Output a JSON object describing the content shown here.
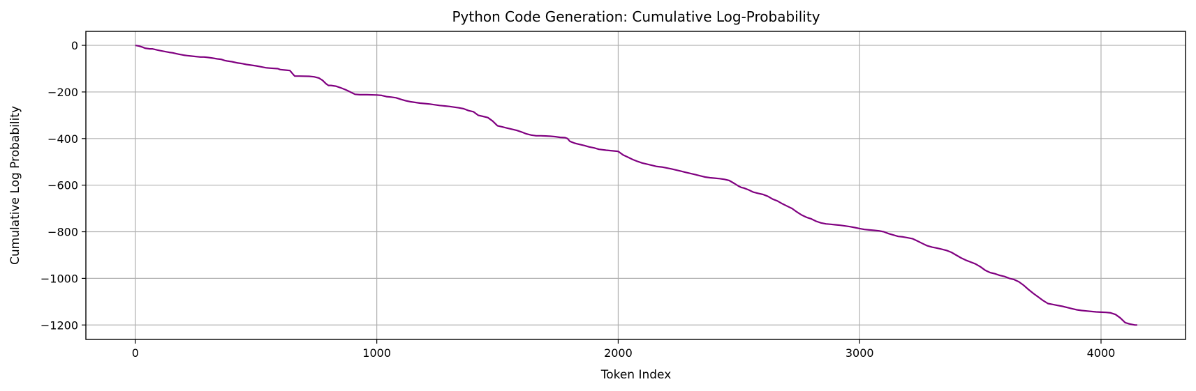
{
  "chart_data": {
    "type": "line",
    "title": "Python Code Generation: Cumulative Log-Probability",
    "xlabel": "Token Index",
    "ylabel": "Cumulative Log Probability",
    "xlim": [
      -205,
      4350
    ],
    "ylim": [
      -1262,
      60
    ],
    "grid": true,
    "xticks": [
      0,
      1000,
      2000,
      3000,
      4000
    ],
    "xtick_labels": [
      "0",
      "1000",
      "2000",
      "3000",
      "4000"
    ],
    "yticks": [
      0,
      -200,
      -400,
      -600,
      -800,
      -1000,
      -1200
    ],
    "ytick_labels": [
      "0",
      "−200",
      "−400",
      "−600",
      "−800",
      "−1000",
      "−1200"
    ],
    "series": [
      {
        "color": "#800080",
        "x": [
          0,
          15,
          30,
          40,
          60,
          70,
          90,
          100,
          115,
          130,
          140,
          155,
          170,
          190,
          200,
          215,
          230,
          250,
          270,
          285,
          300,
          320,
          340,
          355,
          370,
          380,
          400,
          420,
          440,
          460,
          480,
          500,
          520,
          540,
          560,
          590,
          600,
          620,
          640,
          650,
          660,
          680,
          720,
          740,
          760,
          775,
          790,
          800,
          810,
          830,
          850,
          870,
          880,
          900,
          910,
          930,
          960,
          1000,
          1020,
          1040,
          1060,
          1080,
          1100,
          1120,
          1140,
          1160,
          1180,
          1200,
          1220,
          1240,
          1260,
          1280,
          1300,
          1320,
          1340,
          1360,
          1380,
          1400,
          1420,
          1440,
          1460,
          1480,
          1500,
          1520,
          1540,
          1560,
          1580,
          1600,
          1620,
          1640,
          1660,
          1680,
          1700,
          1720,
          1740,
          1760,
          1780,
          1790,
          1800,
          1820,
          1840,
          1860,
          1880,
          1900,
          1920,
          1950,
          1980,
          2000,
          2020,
          2040,
          2060,
          2080,
          2100,
          2120,
          2140,
          2160,
          2180,
          2200,
          2220,
          2240,
          2260,
          2280,
          2300,
          2320,
          2340,
          2360,
          2380,
          2400,
          2420,
          2440,
          2460,
          2480,
          2500,
          2510,
          2520,
          2540,
          2560,
          2580,
          2600,
          2620,
          2640,
          2660,
          2680,
          2700,
          2720,
          2740,
          2760,
          2780,
          2800,
          2820,
          2840,
          2860,
          2880,
          2900,
          2920,
          2940,
          2960,
          2980,
          3000,
          3020,
          3040,
          3060,
          3080,
          3100,
          3120,
          3140,
          3160,
          3180,
          3200,
          3220,
          3240,
          3260,
          3280,
          3300,
          3320,
          3340,
          3360,
          3380,
          3400,
          3420,
          3440,
          3460,
          3480,
          3500,
          3520,
          3540,
          3560,
          3580,
          3600,
          3620,
          3640,
          3660,
          3680,
          3700,
          3720,
          3740,
          3760,
          3780,
          3800,
          3820,
          3840,
          3860,
          3880,
          3900,
          3920,
          3940,
          3960,
          3980,
          4000,
          4020,
          4040,
          4060,
          4080,
          4100,
          4120,
          4140,
          4150
        ],
        "y": [
          0,
          -3,
          -8,
          -12,
          -15,
          -15,
          -20,
          -22,
          -25,
          -28,
          -30,
          -32,
          -36,
          -40,
          -42,
          -44,
          -46,
          -48,
          -50,
          -50,
          -52,
          -55,
          -58,
          -60,
          -65,
          -67,
          -70,
          -75,
          -78,
          -82,
          -85,
          -88,
          -92,
          -96,
          -98,
          -100,
          -104,
          -106,
          -108,
          -120,
          -132,
          -132,
          -133,
          -135,
          -140,
          -150,
          -165,
          -172,
          -172,
          -175,
          -182,
          -190,
          -195,
          -205,
          -210,
          -212,
          -212,
          -213,
          -215,
          -220,
          -222,
          -225,
          -232,
          -238,
          -242,
          -245,
          -248,
          -250,
          -252,
          -255,
          -258,
          -260,
          -262,
          -265,
          -268,
          -272,
          -280,
          -285,
          -300,
          -305,
          -310,
          -325,
          -345,
          -350,
          -355,
          -360,
          -365,
          -372,
          -380,
          -385,
          -388,
          -388,
          -389,
          -390,
          -392,
          -395,
          -396,
          -400,
          -412,
          -420,
          -425,
          -430,
          -436,
          -440,
          -446,
          -450,
          -453,
          -455,
          -470,
          -480,
          -490,
          -498,
          -505,
          -510,
          -515,
          -520,
          -522,
          -526,
          -530,
          -535,
          -540,
          -545,
          -550,
          -555,
          -560,
          -565,
          -568,
          -570,
          -572,
          -575,
          -580,
          -592,
          -605,
          -610,
          -612,
          -620,
          -630,
          -635,
          -640,
          -648,
          -660,
          -668,
          -680,
          -690,
          -700,
          -715,
          -728,
          -738,
          -745,
          -755,
          -762,
          -766,
          -768,
          -770,
          -772,
          -775,
          -778,
          -782,
          -786,
          -790,
          -792,
          -794,
          -796,
          -800,
          -808,
          -814,
          -820,
          -822,
          -826,
          -830,
          -840,
          -850,
          -860,
          -866,
          -870,
          -875,
          -880,
          -888,
          -900,
          -912,
          -922,
          -930,
          -938,
          -950,
          -965,
          -975,
          -980,
          -987,
          -992,
          -1000,
          -1005,
          -1015,
          -1030,
          -1048,
          -1065,
          -1080,
          -1095,
          -1108,
          -1112,
          -1116,
          -1120,
          -1125,
          -1130,
          -1135,
          -1138,
          -1140,
          -1142,
          -1144,
          -1145,
          -1146,
          -1148,
          -1155,
          -1170,
          -1190,
          -1196,
          -1200,
          -1200
        ]
      }
    ]
  }
}
